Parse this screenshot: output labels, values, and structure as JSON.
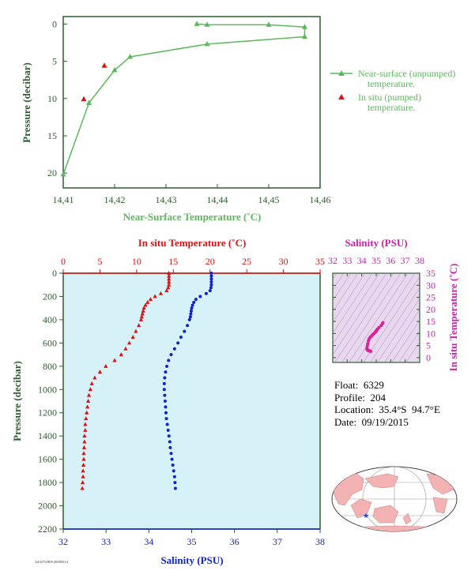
{
  "colors": {
    "near_surface": "#5cb85c",
    "insitu": "#dd1111",
    "salinity": "#1122cc",
    "ts_points": "#dd2299",
    "panel_bg": "#d6f1f8",
    "axis": "#2e5d2e"
  },
  "info": {
    "float_label": "Float:",
    "float": "6329",
    "profile_label": "Profile:",
    "profile": "204",
    "location_label": "Location:",
    "location": "35.4°S  94.7°E",
    "date_label": "Date:",
    "date": "09/19/2015"
  },
  "footer_code": "A4327LH09 20090214",
  "chart_data": [
    {
      "type": "line",
      "xlabel": "Near-Surface Temperature (˚C)",
      "ylabel": "Pressure (decibar)",
      "xlim": [
        14.41,
        14.46
      ],
      "ylim": [
        22,
        -1
      ],
      "x_ticks": [
        "14,41",
        "14,42",
        "14,43",
        "14,44",
        "14,45",
        "14,46"
      ],
      "y_ticks": [
        "0",
        "5",
        "10",
        "15",
        "20"
      ],
      "legend_position": "right",
      "series": [
        {
          "name": "Near-surface (unpumped) temperature.",
          "x": [
            14.436,
            14.438,
            14.45,
            14.457,
            14.457,
            14.438,
            14.423,
            14.42,
            14.415,
            14.41
          ],
          "y": [
            0.0,
            0.1,
            0.1,
            0.4,
            1.7,
            2.7,
            4.4,
            6.2,
            10.6,
            20.2
          ]
        },
        {
          "name": "In situ (pumped) temperature.",
          "x": [
            14.418,
            14.414
          ],
          "y": [
            5.6,
            10.1
          ]
        }
      ]
    },
    {
      "type": "scatter",
      "title": "In situ Temperature (˚C)",
      "xlabel": "Salinity (PSU)",
      "ylabel": "Pressure (decibar)",
      "temp_lim": [
        0,
        35
      ],
      "sal_lim": [
        32,
        38
      ],
      "ylim": [
        2200,
        0
      ],
      "temp_ticks": [
        "0",
        "5",
        "10",
        "15",
        "20",
        "25",
        "30",
        "35"
      ],
      "sal_ticks": [
        "32",
        "33",
        "34",
        "35",
        "36",
        "37",
        "38"
      ],
      "y_ticks": [
        "0",
        "200",
        "400",
        "600",
        "800",
        "1000",
        "1200",
        "1400",
        "1600",
        "1800",
        "2000",
        "2200"
      ],
      "pressure": [
        0,
        25,
        50,
        75,
        100,
        125,
        150,
        175,
        200,
        225,
        250,
        275,
        300,
        325,
        350,
        375,
        400,
        450,
        500,
        550,
        600,
        650,
        700,
        750,
        800,
        850,
        900,
        950,
        1000,
        1050,
        1100,
        1150,
        1200,
        1250,
        1300,
        1350,
        1400,
        1450,
        1500,
        1550,
        1600,
        1650,
        1700,
        1750,
        1800,
        1850
      ],
      "temperature": [
        14.4,
        14.4,
        14.4,
        14.4,
        14.4,
        14.3,
        14.1,
        13.3,
        12.5,
        11.9,
        11.5,
        11.2,
        11.0,
        10.9,
        10.8,
        10.7,
        10.6,
        10.3,
        9.9,
        9.5,
        9.0,
        8.5,
        7.9,
        7.0,
        5.8,
        5.0,
        4.3,
        3.9,
        3.7,
        3.5,
        3.4,
        3.3,
        3.2,
        3.1,
        3.0,
        3.0,
        2.9,
        2.9,
        2.85,
        2.8,
        2.8,
        2.75,
        2.7,
        2.7,
        2.65,
        2.6
      ],
      "salinity": [
        35.46,
        35.46,
        35.46,
        35.46,
        35.46,
        35.45,
        35.43,
        35.34,
        35.2,
        35.1,
        35.05,
        35.02,
        35.0,
        34.99,
        34.98,
        34.97,
        34.95,
        34.9,
        34.83,
        34.75,
        34.68,
        34.6,
        34.52,
        34.46,
        34.42,
        34.39,
        34.37,
        34.36,
        34.36,
        34.37,
        34.38,
        34.39,
        34.4,
        34.41,
        34.43,
        34.45,
        34.47,
        34.49,
        34.5,
        34.52,
        34.54,
        34.56,
        34.58,
        34.6,
        34.61,
        34.62
      ]
    },
    {
      "type": "scatter",
      "title": "Salinity (PSU)",
      "ylabel": "In situ Temperature (˚C)",
      "xlim": [
        32,
        38
      ],
      "ylim": [
        -2,
        35
      ],
      "x_ticks": [
        "32",
        "33",
        "34",
        "35",
        "36",
        "37",
        "38"
      ],
      "y_ticks": [
        "0",
        "5",
        "10",
        "15",
        "20",
        "25",
        "30",
        "35"
      ]
    }
  ]
}
